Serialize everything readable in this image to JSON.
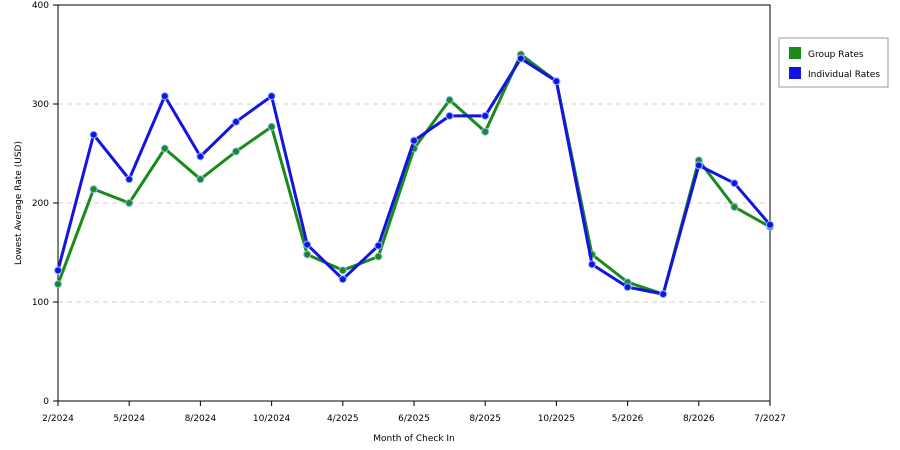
{
  "chart_data": {
    "type": "line",
    "title": "",
    "xlabel": "Month of Check In",
    "ylabel": "Lowest Average Rate (USD)",
    "ylim": [
      0,
      400
    ],
    "yticks": [
      "0",
      "100",
      "200",
      "300",
      "400"
    ],
    "xtick_labels": [
      "2/2024",
      "5/2024",
      "8/2024",
      "10/2024",
      "4/2025",
      "6/2025",
      "8/2025",
      "10/2025",
      "5/2026",
      "8/2026",
      "7/2027"
    ],
    "grid": "horizontal dashed",
    "legend_position": "right",
    "series": [
      {
        "name": "Group Rates",
        "color": "#1a8a1a",
        "values": [
          118,
          214,
          200,
          255,
          224,
          252,
          277,
          148,
          132,
          146,
          255,
          304,
          272,
          350,
          323,
          148,
          120,
          108,
          243,
          196,
          176
        ]
      },
      {
        "name": "Individual Rates",
        "color": "#1414e0",
        "values": [
          132,
          269,
          224,
          308,
          247,
          282,
          308,
          158,
          123,
          157,
          263,
          288,
          288,
          346,
          323,
          138,
          115,
          108,
          238,
          220,
          178
        ]
      }
    ]
  }
}
